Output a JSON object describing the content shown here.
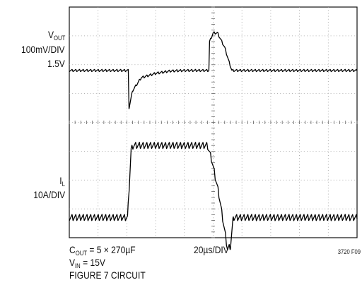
{
  "chart_data": {
    "type": "line",
    "title": "",
    "grid": {
      "divisions_x": 10,
      "divisions_y": 8,
      "minor_ticks_per_div": 5
    },
    "x": {
      "label": "20µs/DIV",
      "unit": "µs",
      "per_div": 20,
      "range": [
        0,
        200
      ]
    },
    "series": [
      {
        "name": "VOUT",
        "label_top": "V",
        "label_sub": "OUT",
        "scale": "100mV/DIV",
        "ref": "1.5V",
        "points": [
          [
            0,
            1.5
          ],
          [
            41,
            1.5
          ],
          [
            41.5,
            1.37
          ],
          [
            44,
            1.43
          ],
          [
            50,
            1.475
          ],
          [
            60,
            1.49
          ],
          [
            70,
            1.498
          ],
          [
            80,
            1.5
          ],
          [
            97,
            1.5
          ],
          [
            97.5,
            1.6
          ],
          [
            100,
            1.63
          ],
          [
            103,
            1.63
          ],
          [
            108,
            1.58
          ],
          [
            111,
            1.53
          ],
          [
            113,
            1.5
          ],
          [
            200,
            1.5
          ]
        ]
      },
      {
        "name": "IL",
        "label_top": "I",
        "label_sub": "L",
        "scale": "10A/DIV",
        "points": [
          [
            0,
            0
          ],
          [
            40.5,
            0
          ],
          [
            43,
            23.5
          ],
          [
            44.5,
            25
          ],
          [
            96,
            25
          ],
          [
            99,
            20
          ],
          [
            104,
            8
          ],
          [
            110,
            -11
          ],
          [
            112,
            -10
          ],
          [
            114,
            0
          ],
          [
            200,
            0
          ]
        ]
      }
    ]
  },
  "notes": {
    "cout_main": "C",
    "cout_sub": "OUT",
    "cout_rest": " = 5 × 270µF",
    "vin_main": "V",
    "vin_sub": "IN",
    "vin_rest": " = 15V",
    "figure": "FIGURE 7 CIRCUIT",
    "timebase": "20µs/DIV",
    "id": "3720 F09"
  }
}
